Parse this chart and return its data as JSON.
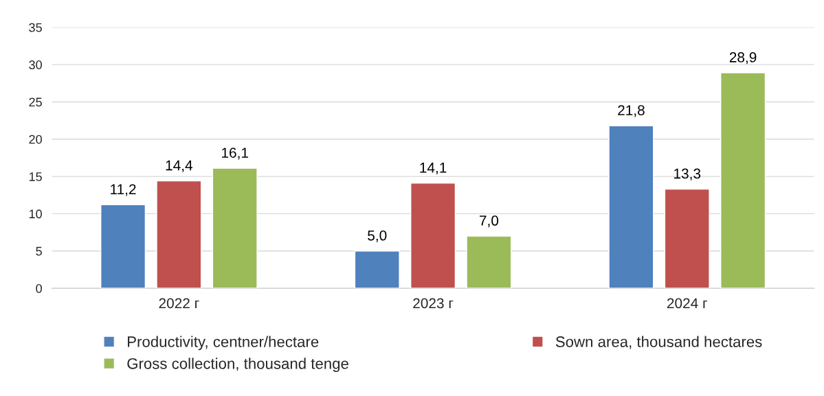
{
  "chart_data": {
    "type": "bar",
    "categories": [
      "2022 г",
      "2023 г",
      "2024 г"
    ],
    "series": [
      {
        "name": "Productivity, centner/hectare",
        "color": "#4f81bd",
        "values": [
          11.2,
          5.0,
          21.8
        ],
        "value_labels": [
          "11,2",
          "5,0",
          "21,8"
        ]
      },
      {
        "name": "Sown area, thousand hectares",
        "color": "#c0504d",
        "values": [
          14.4,
          14.1,
          13.3
        ],
        "value_labels": [
          "14,4",
          "14,1",
          "13,3"
        ]
      },
      {
        "name": "Gross collection, thousand tenge",
        "color": "#9bbb59",
        "values": [
          16.1,
          7.0,
          28.9
        ],
        "value_labels": [
          "16,1",
          "7,0",
          "28,9"
        ]
      }
    ],
    "ylim": [
      0,
      35
    ],
    "yticks": [
      0,
      5,
      10,
      15,
      20,
      25,
      30,
      35
    ],
    "grid": "y",
    "legend": "bottom"
  }
}
